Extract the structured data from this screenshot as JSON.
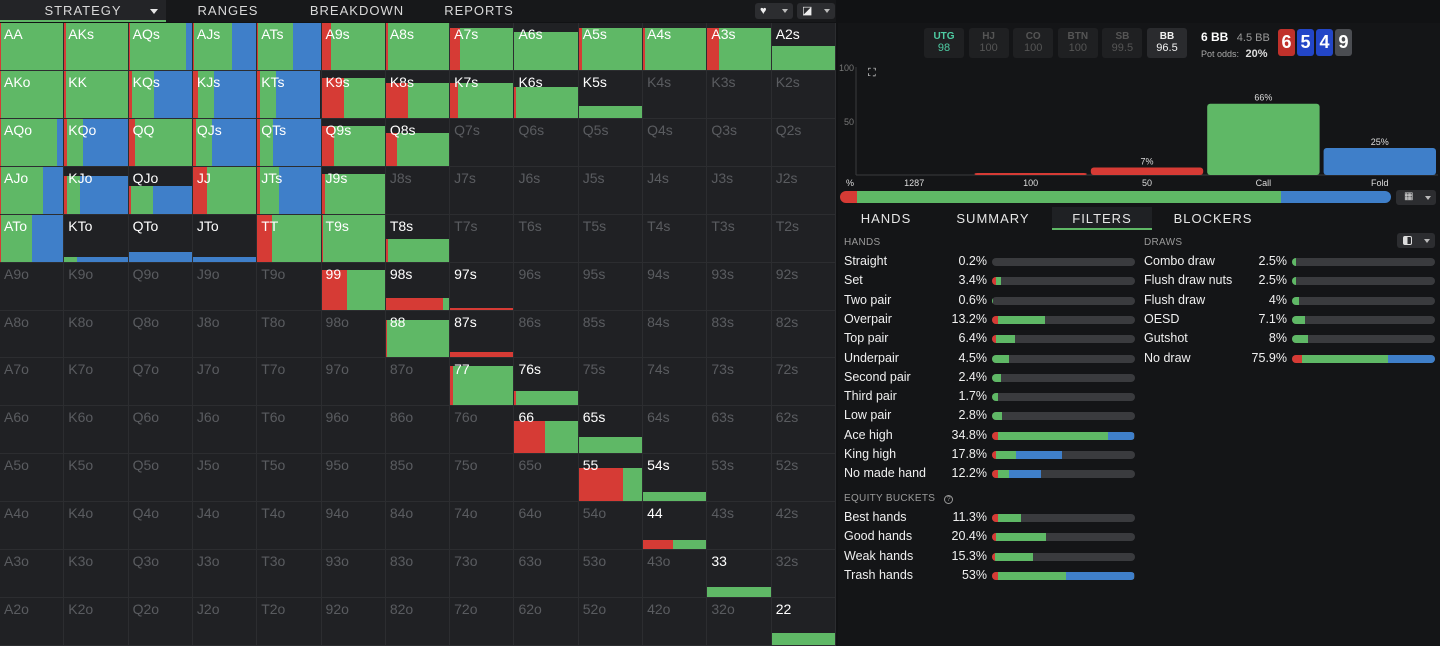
{
  "nav": {
    "tabs": [
      "STRATEGY",
      "RANGES",
      "BREAKDOWN",
      "REPORTS"
    ],
    "active_tab": "STRATEGY"
  },
  "colors": {
    "raise": "#d63b35",
    "call": "#5fb866",
    "fold": "#3f7fc9",
    "bg": "#111214"
  },
  "grid": {
    "ranks": [
      "A",
      "K",
      "Q",
      "J",
      "T",
      "9",
      "8",
      "7",
      "6",
      "5",
      "4",
      "3",
      "2"
    ],
    "cells": {
      "AA": [
        1.0,
        0.02,
        0.98,
        0.0
      ],
      "AKs": [
        1.0,
        0.02,
        0.98,
        0.0
      ],
      "AQs": [
        1.0,
        0.02,
        0.88,
        0.1
      ],
      "AJs": [
        1.0,
        0.02,
        0.6,
        0.38
      ],
      "ATs": [
        1.0,
        0.02,
        0.55,
        0.43
      ],
      "A9s": [
        1.0,
        0.15,
        0.85,
        0.0
      ],
      "A8s": [
        1.0,
        0.04,
        0.96,
        0.0
      ],
      "A7s": [
        0.9,
        0.15,
        0.85,
        0.0
      ],
      "A6s": [
        0.8,
        0.0,
        1.0,
        0.0
      ],
      "A5s": [
        0.9,
        0.05,
        0.95,
        0.0
      ],
      "A4s": [
        0.9,
        0.03,
        0.97,
        0.0
      ],
      "A3s": [
        0.9,
        0.18,
        0.82,
        0.0
      ],
      "A2s": [
        0.5,
        0.0,
        1.0,
        0.0
      ],
      "AKo": [
        1.0,
        0.02,
        0.98,
        0.0
      ],
      "KK": [
        1.0,
        0.02,
        0.98,
        0.0
      ],
      "KQs": [
        1.0,
        0.05,
        0.35,
        0.6
      ],
      "KJs": [
        1.0,
        0.08,
        0.25,
        0.67
      ],
      "KTs": [
        1.0,
        0.05,
        0.25,
        0.7
      ],
      "K9s": [
        0.85,
        0.35,
        0.65,
        0.0
      ],
      "K8s": [
        0.75,
        0.35,
        0.65,
        0.0
      ],
      "K7s": [
        0.75,
        0.12,
        0.88,
        0.0
      ],
      "K6s": [
        0.65,
        0.03,
        0.97,
        0.0
      ],
      "K5s": [
        0.25,
        0.0,
        1.0,
        0.0
      ],
      "AQo": [
        1.0,
        0.02,
        0.88,
        0.1
      ],
      "KQo": [
        1.0,
        0.05,
        0.25,
        0.7
      ],
      "QQ": [
        1.0,
        0.1,
        0.9,
        0.0
      ],
      "QJs": [
        1.0,
        0.05,
        0.25,
        0.7
      ],
      "QTs": [
        1.0,
        0.05,
        0.2,
        0.75
      ],
      "Q9s": [
        0.85,
        0.2,
        0.8,
        0.0
      ],
      "Q8s": [
        0.7,
        0.18,
        0.82,
        0.0
      ],
      "AJo": [
        1.0,
        0.02,
        0.66,
        0.32
      ],
      "KJo": [
        0.8,
        0.05,
        0.2,
        0.75
      ],
      "QJo": [
        0.6,
        0.03,
        0.35,
        0.62
      ],
      "JJ": [
        1.0,
        0.23,
        0.77,
        0.0
      ],
      "JTs": [
        1.0,
        0.05,
        0.3,
        0.65
      ],
      "J9s": [
        0.85,
        0.05,
        0.95,
        0.0
      ],
      "ATo": [
        1.0,
        0.02,
        0.48,
        0.5
      ],
      "KTo": [
        0.1,
        0.0,
        0.2,
        0.8
      ],
      "QTo": [
        0.2,
        0.0,
        0.0,
        1.0
      ],
      "JTo": [
        0.1,
        0.0,
        0.0,
        1.0
      ],
      "TT": [
        1.0,
        0.23,
        0.77,
        0.0
      ],
      "T9s": [
        1.0,
        0.02,
        0.98,
        0.0
      ],
      "T8s": [
        0.48,
        0.03,
        0.97,
        0.0
      ],
      "99": [
        0.85,
        0.4,
        0.6,
        0.0
      ],
      "98s": [
        0.25,
        0.9,
        0.1,
        0.0
      ],
      "97s": [
        0.04,
        1.0,
        0.0,
        0.0
      ],
      "88": [
        0.8,
        0.02,
        0.98,
        0.0
      ],
      "87s": [
        0.12,
        1.0,
        0.0,
        0.0
      ],
      "77": [
        0.85,
        0.05,
        0.95,
        0.0
      ],
      "76s": [
        0.3,
        0.03,
        0.97,
        0.0
      ],
      "66": [
        0.68,
        0.48,
        0.52,
        0.0
      ],
      "65s": [
        0.35,
        0.0,
        1.0,
        0.0
      ],
      "55": [
        0.7,
        0.7,
        0.3,
        0.0
      ],
      "54s": [
        0.2,
        0.0,
        1.0,
        0.0
      ],
      "44": [
        0.2,
        0.47,
        0.53,
        0.0
      ],
      "33": [
        0.22,
        0.0,
        1.0,
        0.0
      ],
      "22": [
        0.25,
        0.0,
        1.0,
        0.0
      ]
    }
  },
  "positions": [
    {
      "name": "UTG",
      "stack": "98",
      "state": "active"
    },
    {
      "name": "HJ",
      "stack": "100",
      "state": "dim"
    },
    {
      "name": "CO",
      "stack": "100",
      "state": "dim"
    },
    {
      "name": "BTN",
      "stack": "100",
      "state": "dim"
    },
    {
      "name": "SB",
      "stack": "99.5",
      "state": "dim"
    },
    {
      "name": "BB",
      "stack": "96.5",
      "state": "current"
    }
  ],
  "pot": {
    "size": "6 BB",
    "bet": "4.5 BB",
    "odds_label": "Pot odds:",
    "odds": "20%"
  },
  "board": [
    {
      "rank": "6",
      "color": "#c0312b"
    },
    {
      "rank": "5",
      "color": "#2346c7"
    },
    {
      "rank": "4",
      "color": "#2346c7"
    },
    {
      "rank": "9",
      "color": "#4b4d52"
    }
  ],
  "chart_data": {
    "type": "bar",
    "ylim": [
      0,
      100
    ],
    "y_ticks": [
      "100",
      "50"
    ],
    "categories": [
      "1287",
      "100",
      "50",
      "Call",
      "Fold"
    ],
    "values": [
      0,
      1,
      7,
      66,
      25
    ],
    "data_labels": [
      "",
      "",
      "7%",
      "66%",
      "25%"
    ],
    "bar_colors": [
      "#d63b35",
      "#d63b35",
      "#d63b35",
      "#5fb866",
      "#3f7fc9"
    ],
    "corner_label": "%"
  },
  "summary_bar": [
    0.03,
    0.77,
    0.2
  ],
  "tabs": [
    "HANDS",
    "SUMMARY",
    "FILTERS",
    "BLOCKERS"
  ],
  "active_tab": "FILTERS",
  "hands": {
    "title": "HANDS",
    "rows": [
      {
        "name": "Straight",
        "pct": "0.2%",
        "segs": [
          0.0,
          0.0,
          0.0
        ]
      },
      {
        "name": "Set",
        "pct": "3.4%",
        "segs": [
          0.03,
          0.03,
          0.0
        ]
      },
      {
        "name": "Two pair",
        "pct": "0.6%",
        "segs": [
          0.0,
          0.01,
          0.0
        ]
      },
      {
        "name": "Overpair",
        "pct": "13.2%",
        "segs": [
          0.04,
          0.33,
          0.0
        ]
      },
      {
        "name": "Top pair",
        "pct": "6.4%",
        "segs": [
          0.03,
          0.13,
          0.0
        ]
      },
      {
        "name": "Underpair",
        "pct": "4.5%",
        "segs": [
          0.0,
          0.12,
          0.0
        ]
      },
      {
        "name": "Second pair",
        "pct": "2.4%",
        "segs": [
          0.0,
          0.06,
          0.0
        ]
      },
      {
        "name": "Third pair",
        "pct": "1.7%",
        "segs": [
          0.0,
          0.04,
          0.0
        ]
      },
      {
        "name": "Low pair",
        "pct": "2.8%",
        "segs": [
          0.0,
          0.07,
          0.0
        ]
      },
      {
        "name": "Ace high",
        "pct": "34.8%",
        "segs": [
          0.04,
          0.77,
          0.18
        ]
      },
      {
        "name": "King high",
        "pct": "17.8%",
        "segs": [
          0.03,
          0.14,
          0.32
        ]
      },
      {
        "name": "No made hand",
        "pct": "12.2%",
        "segs": [
          0.04,
          0.08,
          0.22
        ]
      }
    ]
  },
  "equity": {
    "title": "EQUITY BUCKETS",
    "rows": [
      {
        "name": "Best hands",
        "pct": "11.3%",
        "segs": [
          0.04,
          0.16,
          0.0
        ]
      },
      {
        "name": "Good hands",
        "pct": "20.4%",
        "segs": [
          0.03,
          0.35,
          0.0
        ]
      },
      {
        "name": "Weak hands",
        "pct": "15.3%",
        "segs": [
          0.02,
          0.27,
          0.0
        ]
      },
      {
        "name": "Trash hands",
        "pct": "53%",
        "segs": [
          0.04,
          0.48,
          0.47
        ]
      }
    ]
  },
  "draws": {
    "title": "DRAWS",
    "rows": [
      {
        "name": "Combo draw",
        "pct": "2.5%",
        "segs": [
          0.0,
          0.03,
          0.0
        ]
      },
      {
        "name": "Flush draw nuts",
        "pct": "2.5%",
        "segs": [
          0.0,
          0.03,
          0.0
        ]
      },
      {
        "name": "Flush draw",
        "pct": "4%",
        "segs": [
          0.0,
          0.05,
          0.0
        ]
      },
      {
        "name": "OESD",
        "pct": "7.1%",
        "segs": [
          0.0,
          0.09,
          0.0
        ]
      },
      {
        "name": "Gutshot",
        "pct": "8%",
        "segs": [
          0.0,
          0.11,
          0.0
        ]
      },
      {
        "name": "No draw",
        "pct": "75.9%",
        "segs": [
          0.07,
          0.6,
          0.33
        ]
      }
    ]
  }
}
